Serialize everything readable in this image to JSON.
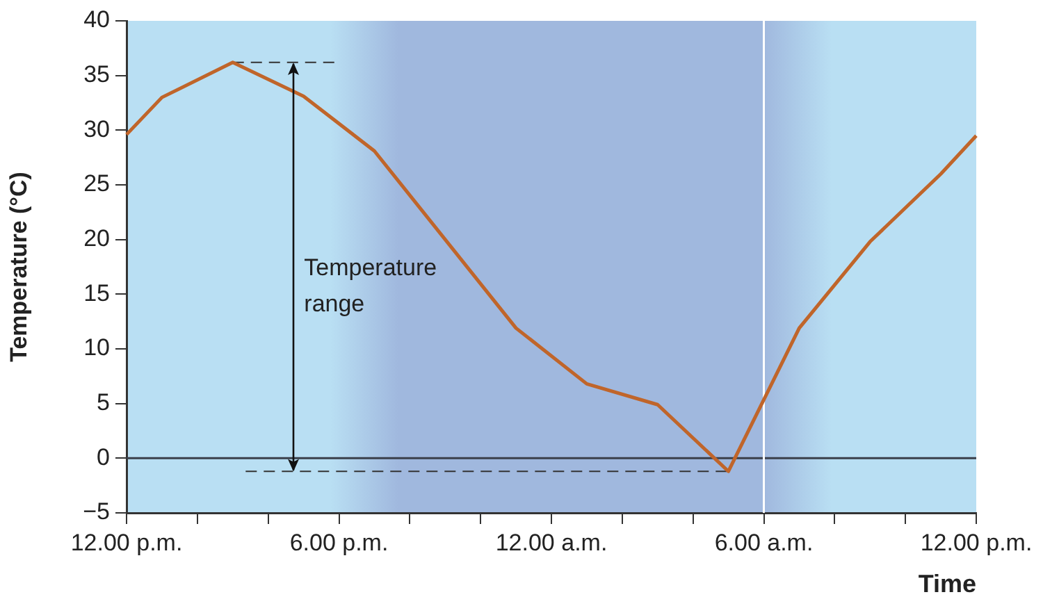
{
  "chart_data": {
    "type": "line",
    "xlabel": "Time",
    "ylabel": "Temperature (°C)",
    "categories": [
      "12.00 p.m.",
      null,
      null,
      null,
      null,
      null,
      "6.00 p.m.",
      null,
      null,
      null,
      null,
      null,
      "12.00 a.m.",
      null,
      null,
      null,
      null,
      null,
      "6.00 a.m.",
      null,
      null,
      null,
      null,
      null,
      "12.00 p.m."
    ],
    "series": [
      {
        "color": "#c0652a",
        "values": [
          29.6,
          33.0,
          null,
          36.2,
          null,
          33.1,
          null,
          28.1,
          null,
          null,
          null,
          11.9,
          null,
          6.8,
          null,
          4.9,
          null,
          -1.2,
          null,
          11.9,
          null,
          19.8,
          null,
          26.0,
          29.5
        ]
      }
    ],
    "ylim": [
      -5,
      40
    ],
    "yticks": [
      -5,
      0,
      5,
      10,
      15,
      20,
      25,
      30,
      35,
      40
    ],
    "ref_lines": [
      {
        "axis": "y",
        "value": 0,
        "color": "#3a3f4a"
      },
      {
        "axis": "x",
        "value": "6.00 a.m.",
        "color": "#ffffff"
      },
      {
        "axis": "y",
        "value": 36.2,
        "color": "#333333",
        "line_style": "dashed"
      },
      {
        "axis": "y",
        "value": -1.2,
        "color": "#333333",
        "line_style": "dashed"
      }
    ],
    "annotations": [
      "Temperature range"
    ],
    "grid": false,
    "legend": false,
    "marker": "none",
    "line_style": "solid"
  }
}
